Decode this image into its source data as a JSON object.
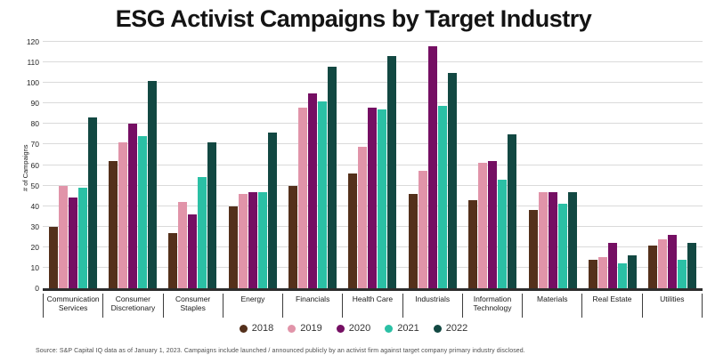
{
  "title": "ESG Activist Campaigns by Target Industry",
  "footer": {
    "source": "Source: S&P Capital IQ data as of January 1, 2023. Campaigns include launched / announced publicly by an activist firm against target company primary industry disclosed."
  },
  "colors": {
    "background": "#ffffff",
    "gridline": "#dadada",
    "axis_line": "#2d2d2d",
    "title_text": "#141414"
  },
  "chart_data": {
    "type": "bar",
    "title": "ESG Activist Campaigns by Target Industry",
    "xlabel": "",
    "ylabel": "# of Campaigns",
    "ylim": [
      0,
      120
    ],
    "ytick_step": 10,
    "grid": true,
    "legend_position": "bottom",
    "categories": [
      "Communication Services",
      "Consumer Discretionary",
      "Consumer Staples",
      "Energy",
      "Financials",
      "Health Care",
      "Industrials",
      "Information Technology",
      "Materials",
      "Real Estate",
      "Utilities"
    ],
    "series": [
      {
        "name": "2018",
        "color": "#54301b",
        "values": [
          30,
          62,
          27,
          40,
          50,
          56,
          46,
          43,
          38,
          14,
          21
        ]
      },
      {
        "name": "2019",
        "color": "#e194a9",
        "values": [
          50,
          71,
          42,
          46,
          88,
          69,
          57,
          61,
          47,
          15,
          24
        ]
      },
      {
        "name": "2020",
        "color": "#750f63",
        "values": [
          44,
          80,
          36,
          47,
          95,
          88,
          118,
          62,
          47,
          22,
          26
        ]
      },
      {
        "name": "2021",
        "color": "#2bc0a5",
        "values": [
          49,
          74,
          54,
          47,
          91,
          87,
          89,
          53,
          41,
          12,
          14
        ]
      },
      {
        "name": "2022",
        "color": "#124842",
        "values": [
          83,
          101,
          71,
          76,
          108,
          113,
          105,
          75,
          47,
          16,
          22
        ]
      }
    ]
  }
}
